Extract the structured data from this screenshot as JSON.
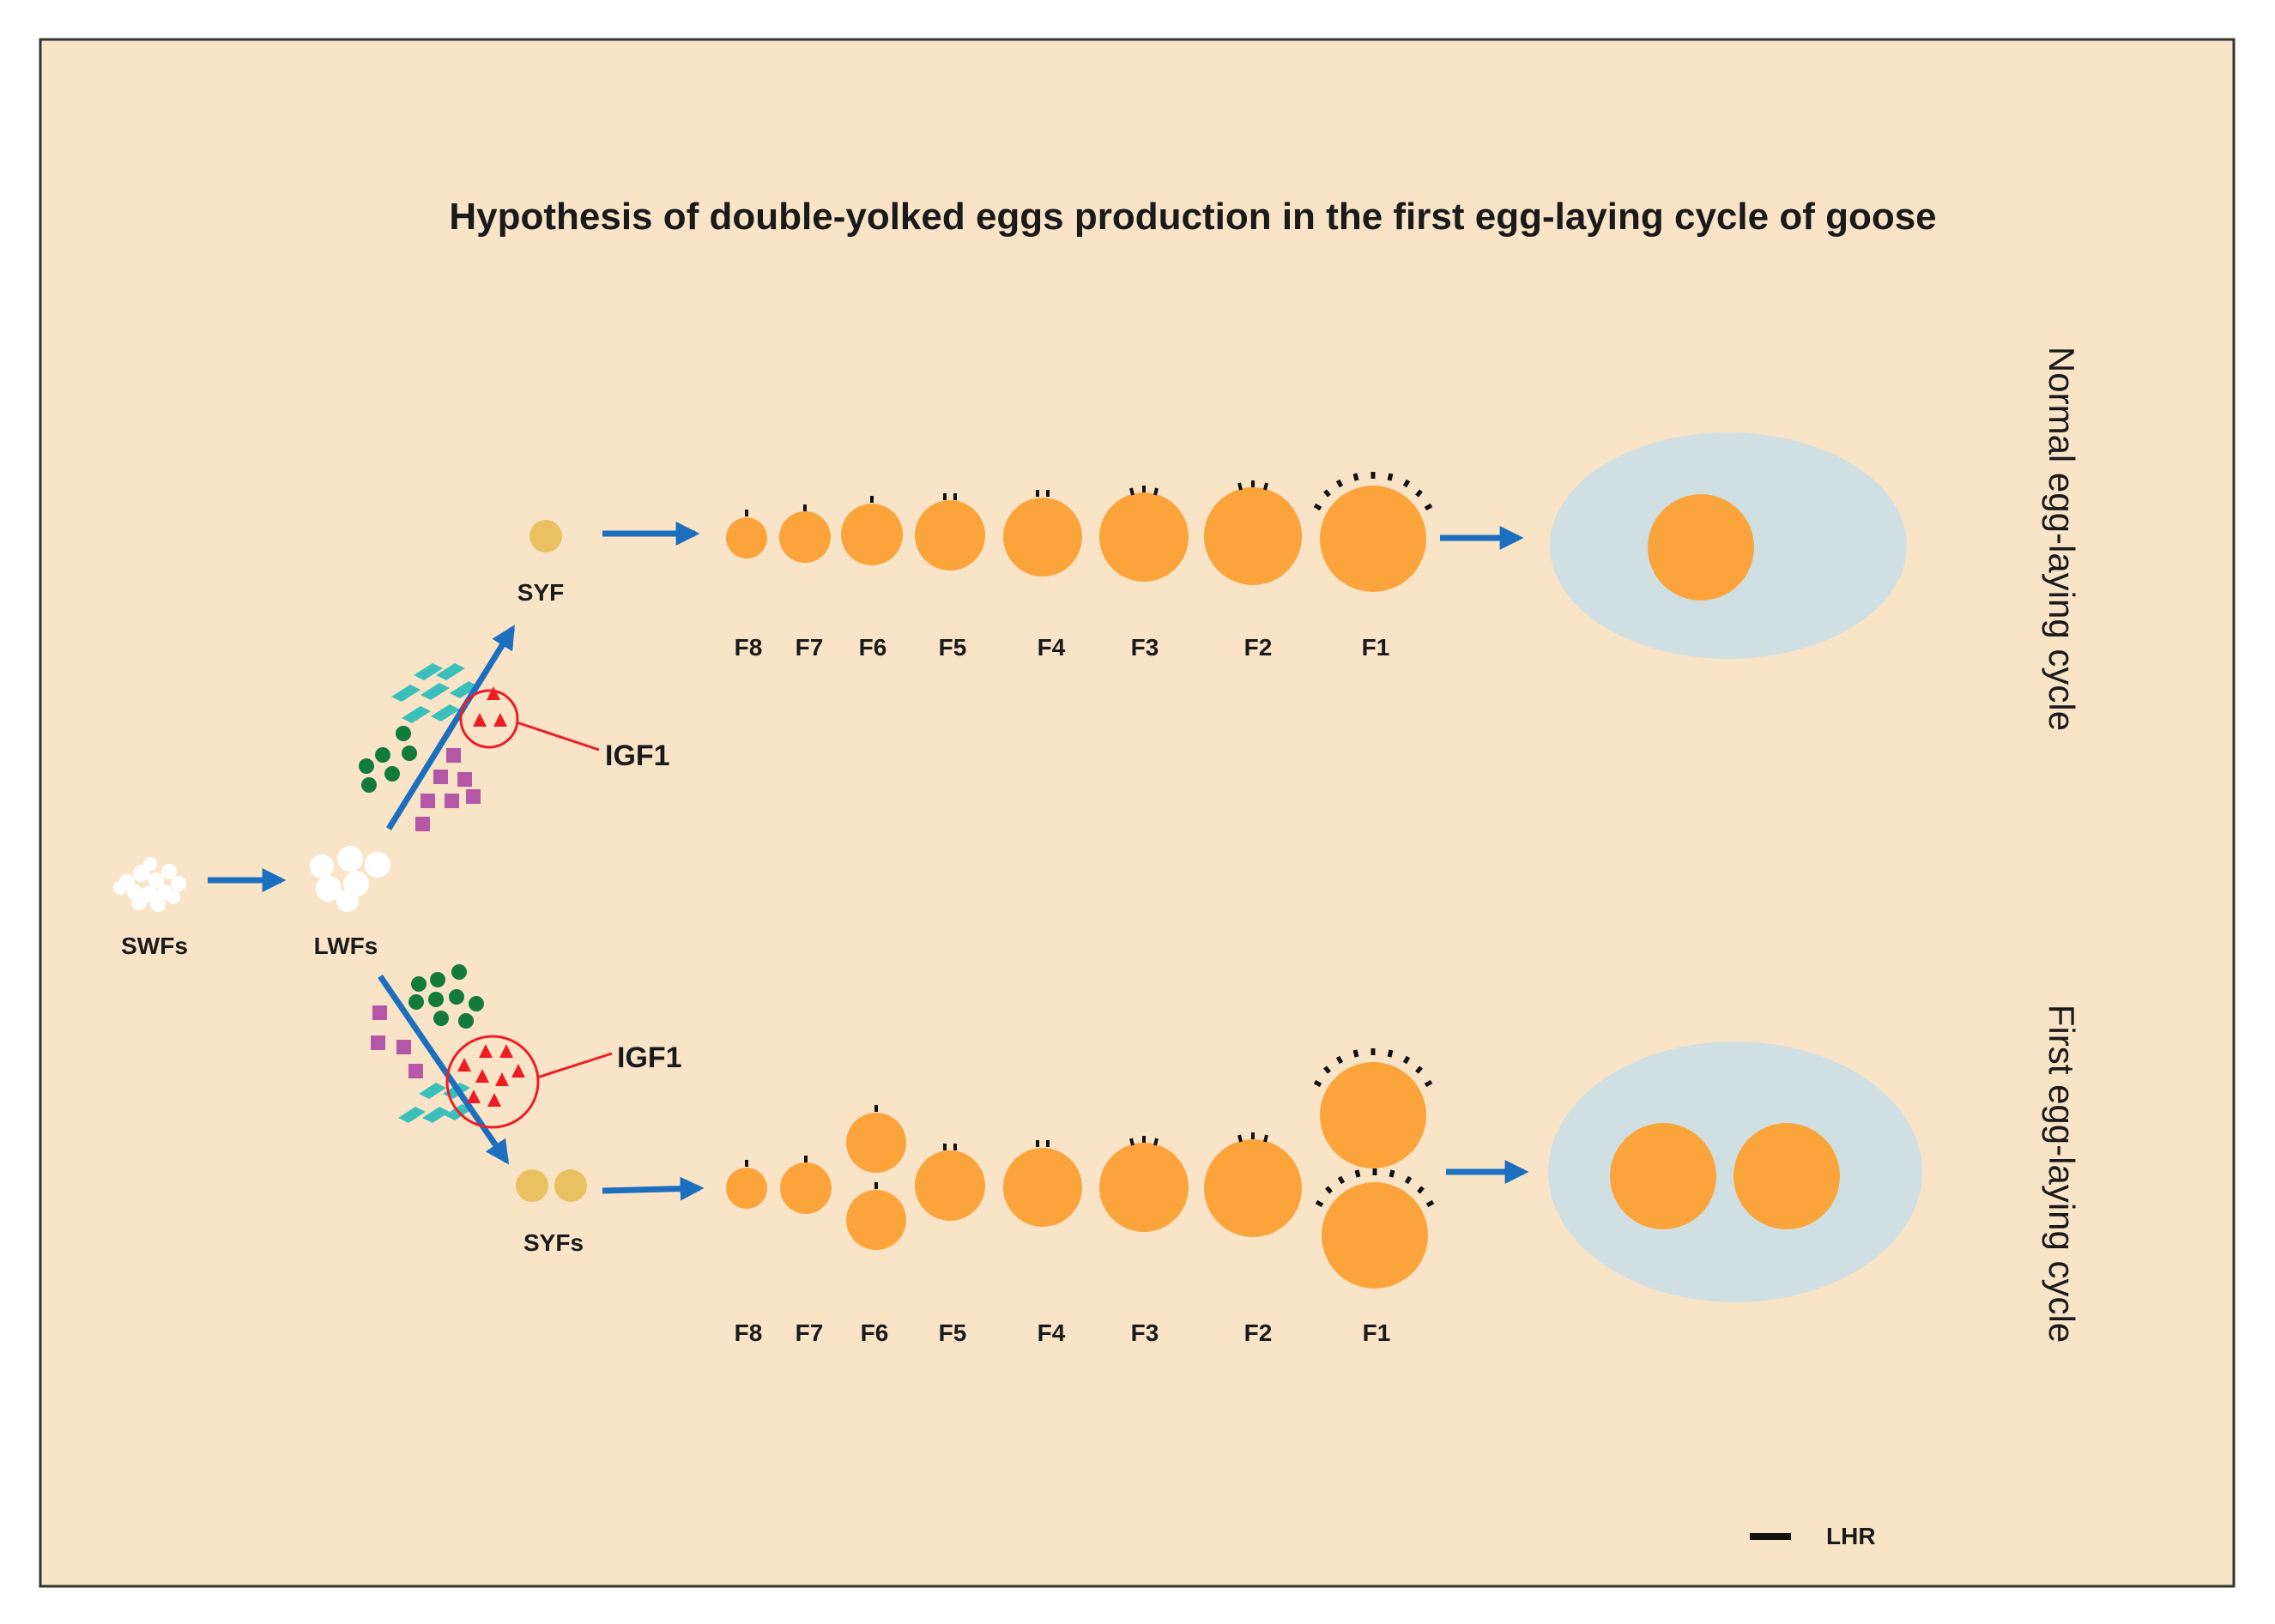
{
  "title": "Hypothesis of double-yolked eggs production in the first egg-laying cycle of goose",
  "colors": {
    "background": "#f9e4c7",
    "follicle": "#fca43c",
    "small_yellow": "#e9c160",
    "egg": "#d0e0e2",
    "arrow": "#1c6fbf",
    "igf1": "#ee1c24",
    "green_dot": "#127a3a",
    "square": "#b457a6",
    "teal": "#3bbfba",
    "lhr": "#111111"
  },
  "early_stage": {
    "swfs_label": "SWFs",
    "lwfs_label": "LWFs"
  },
  "normal_cycle": {
    "side_label": "Normal egg-laying cycle",
    "syf_label": "SYF",
    "igf1_label": "IGF1",
    "igf1_triangle_count": 3,
    "follicles": [
      {
        "label": "F8",
        "lhr_marks": 1
      },
      {
        "label": "F7",
        "lhr_marks": 1
      },
      {
        "label": "F6",
        "lhr_marks": 1
      },
      {
        "label": "F5",
        "lhr_marks": 2
      },
      {
        "label": "F4",
        "lhr_marks": 2
      },
      {
        "label": "F3",
        "lhr_marks": 3
      },
      {
        "label": "F2",
        "lhr_marks": 3
      },
      {
        "label": "F1",
        "lhr_marks": 9
      }
    ],
    "egg_yolk_count": 1
  },
  "first_cycle": {
    "side_label": "First egg-laying cycle",
    "syf_label": "SYFs",
    "igf1_label": "IGF1",
    "igf1_triangle_count": 8,
    "follicles": [
      {
        "label": "F8",
        "lhr_marks": 1
      },
      {
        "label": "F7",
        "lhr_marks": 1
      },
      {
        "label": "F6",
        "lhr_marks": 1
      },
      {
        "label": "F5",
        "lhr_marks": 2
      },
      {
        "label": "F4",
        "lhr_marks": 2
      },
      {
        "label": "F3",
        "lhr_marks": 3
      },
      {
        "label": "F2",
        "lhr_marks": 3
      },
      {
        "label": "F1",
        "lhr_marks": 9
      }
    ],
    "egg_yolk_count": 2
  },
  "legend": {
    "lhr_label": "LHR"
  }
}
